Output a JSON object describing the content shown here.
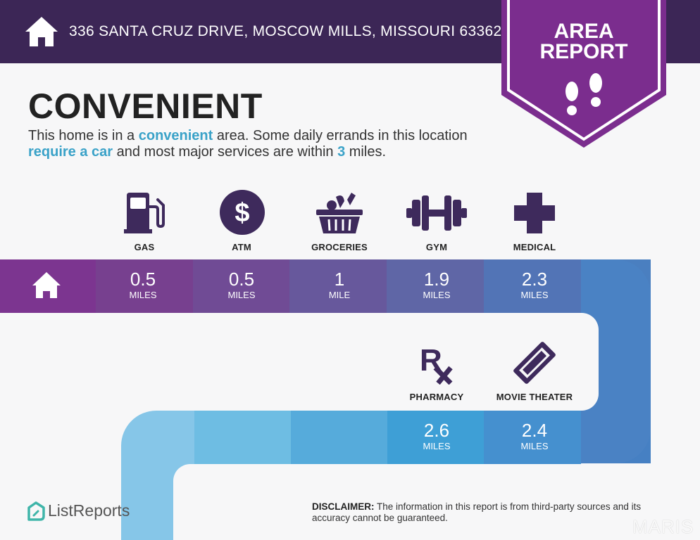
{
  "header": {
    "address": "336 SANTA CRUZ DRIVE, MOSCOW MILLS, MISSOURI 63362",
    "badge_line1": "AREA",
    "badge_line2": "REPORT"
  },
  "headline": "CONVENIENT",
  "intro": {
    "p1": "This home is in a ",
    "h1": "convenient",
    "p2": " area. Some daily errands in this location ",
    "h2": "require a car",
    "p3": " and most major services are within ",
    "h3": "3",
    "p4": " miles."
  },
  "services": [
    {
      "label": "GAS",
      "distance": "0.5",
      "unit": "MILES",
      "icon": "gas-pump-icon"
    },
    {
      "label": "ATM",
      "distance": "0.5",
      "unit": "MILES",
      "icon": "dollar-icon"
    },
    {
      "label": "GROCERIES",
      "distance": "1",
      "unit": "MILE",
      "icon": "grocery-basket-icon"
    },
    {
      "label": "GYM",
      "distance": "1.9",
      "unit": "MILES",
      "icon": "dumbbell-icon"
    },
    {
      "label": "MEDICAL",
      "distance": "2.3",
      "unit": "MILES",
      "icon": "medical-cross-icon"
    },
    {
      "label": "PHARMACY",
      "distance": "2.6",
      "unit": "MILES",
      "icon": "rx-icon"
    },
    {
      "label": "MOVIE THEATER",
      "distance": "2.4",
      "unit": "MILES",
      "icon": "ticket-icon"
    }
  ],
  "footer": {
    "logo": "ListReports",
    "disclaimer_label": "DISCLAIMER:",
    "disclaimer_text": " The information in this report is from third-party sources and its accuracy cannot be guaranteed.",
    "watermark": "MARIS"
  },
  "colors": {
    "header_bg": "#3c2656",
    "badge": "#7b2d8e",
    "accent_blue": "#3aa2c8",
    "icon_purple": "#3e2a5c"
  }
}
